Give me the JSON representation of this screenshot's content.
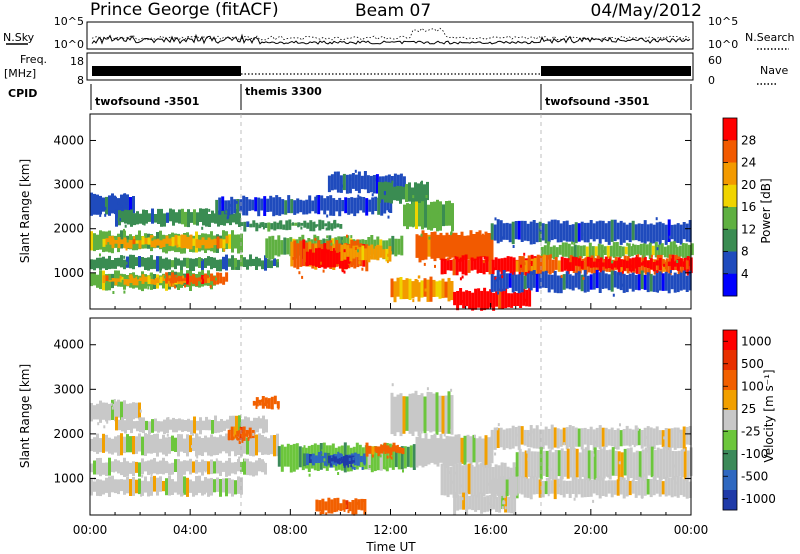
{
  "header": {
    "station": "Prince George (fitACF)",
    "beam": "Beam 07",
    "date": "04/May/2012"
  },
  "colors": {
    "power": [
      "#0000ff",
      "#1f4bbd",
      "#3a8c52",
      "#5fb041",
      "#f0d400",
      "#f39a00",
      "#f25a00",
      "#ff0000"
    ],
    "velocity": [
      "#1f3aa8",
      "#2f68c0",
      "#3c8a5a",
      "#6cc63c",
      "#c8c8c8",
      "#f2a000",
      "#f26000",
      "#e83000",
      "#ff0000"
    ],
    "grey": "#c8c8c8"
  },
  "top_panel": {
    "nsky_label": "N.Sky",
    "nsearch_label": "N.Search",
    "left_ticks": [
      "10^5",
      "10^0"
    ],
    "right_ticks": [
      "10^5",
      "10^0"
    ]
  },
  "freq_panel": {
    "label": "Freq.",
    "unit": "[MHz]",
    "left_ticks": [
      "18",
      "8"
    ],
    "right_ticks": [
      "60",
      "0"
    ],
    "nave_label": "Nave"
  },
  "cpid": {
    "label": "CPID",
    "segments": [
      "twofsound -3501",
      "themis 3300",
      "twofsound -3501"
    ]
  },
  "chart_data": [
    {
      "type": "heatmap",
      "name": "power",
      "ylabel": "Slant Range [km]",
      "ylim": [
        180,
        4600
      ],
      "yticks": [
        "1000",
        "2000",
        "3000",
        "4000"
      ],
      "colorbar": {
        "label": "Power [dB]",
        "ticks": [
          "4",
          "8",
          "12",
          "16",
          "20",
          "24",
          "28"
        ]
      },
      "bands": [
        {
          "x0": 0.0,
          "x1": 1.7,
          "y0": 2350,
          "y1": 2750,
          "c": 1
        },
        {
          "x0": 1.0,
          "x1": 6.0,
          "y0": 2100,
          "y1": 2400,
          "c": 2
        },
        {
          "x0": 0.0,
          "x1": 6.0,
          "y0": 1500,
          "y1": 1900,
          "c": 3
        },
        {
          "x0": 0.5,
          "x1": 5.5,
          "y0": 1600,
          "y1": 1800,
          "c": 5
        },
        {
          "x0": 0.0,
          "x1": 7.5,
          "y0": 1100,
          "y1": 1350,
          "c": 2
        },
        {
          "x0": 0.0,
          "x1": 5.0,
          "y0": 650,
          "y1": 1000,
          "c": 3
        },
        {
          "x0": 0.5,
          "x1": 4.0,
          "y0": 750,
          "y1": 900,
          "c": 5
        },
        {
          "x0": 3.0,
          "x1": 5.5,
          "y0": 750,
          "y1": 950,
          "c": 6
        },
        {
          "x0": 5.0,
          "x1": 12.0,
          "y0": 2350,
          "y1": 2700,
          "c": 1
        },
        {
          "x0": 6.0,
          "x1": 10.0,
          "y0": 2000,
          "y1": 2150,
          "c": 2
        },
        {
          "x0": 7.0,
          "x1": 12.5,
          "y0": 1350,
          "y1": 1800,
          "c": 3
        },
        {
          "x0": 8.0,
          "x1": 11.0,
          "y0": 1100,
          "y1": 1700,
          "c": 6
        },
        {
          "x0": 8.5,
          "x1": 10.5,
          "y0": 1150,
          "y1": 1500,
          "c": 7
        },
        {
          "x0": 10.0,
          "x1": 12.0,
          "y0": 1300,
          "y1": 1600,
          "c": 5
        },
        {
          "x0": 9.5,
          "x1": 12.5,
          "y0": 2850,
          "y1": 3250,
          "c": 1
        },
        {
          "x0": 11.5,
          "x1": 13.5,
          "y0": 2600,
          "y1": 3000,
          "c": 2
        },
        {
          "x0": 12.5,
          "x1": 14.5,
          "y0": 2000,
          "y1": 2600,
          "c": 3
        },
        {
          "x0": 13.0,
          "x1": 16.0,
          "y0": 1300,
          "y1": 1900,
          "c": 6
        },
        {
          "x0": 14.0,
          "x1": 18.0,
          "y0": 1000,
          "y1": 1350,
          "c": 7
        },
        {
          "x0": 12.0,
          "x1": 14.5,
          "y0": 400,
          "y1": 850,
          "c": 5
        },
        {
          "x0": 14.5,
          "x1": 17.5,
          "y0": 200,
          "y1": 600,
          "c": 7
        },
        {
          "x0": 16.0,
          "x1": 24.0,
          "y0": 1700,
          "y1": 2150,
          "c": 1
        },
        {
          "x0": 18.0,
          "x1": 24.0,
          "y0": 1350,
          "y1": 1650,
          "c": 3
        },
        {
          "x0": 17.0,
          "x1": 24.0,
          "y0": 1000,
          "y1": 1350,
          "c": 6
        },
        {
          "x0": 19.0,
          "x1": 24.0,
          "y0": 1100,
          "y1": 1300,
          "c": 7
        },
        {
          "x0": 16.0,
          "x1": 24.0,
          "y0": 600,
          "y1": 1000,
          "c": 1
        }
      ]
    },
    {
      "type": "heatmap",
      "name": "velocity",
      "ylabel": "Slant Range [km]",
      "xlabel": "Time UT",
      "ylim": [
        180,
        4600
      ],
      "yticks": [
        "1000",
        "2000",
        "3000",
        "4000"
      ],
      "xticks": [
        "00:00",
        "04:00",
        "08:00",
        "12:00",
        "16:00",
        "20:00",
        "00:00"
      ],
      "colorbar": {
        "label": "Velocity [m s⁻¹]",
        "ticks": [
          "1000",
          "500",
          "100",
          "25",
          "-25",
          "-100",
          "-500",
          "-1000"
        ]
      },
      "bands": [
        {
          "x0": 0.0,
          "x1": 2.0,
          "y0": 2300,
          "y1": 2700,
          "c": 4
        },
        {
          "x0": 1.0,
          "x1": 7.0,
          "y0": 2050,
          "y1": 2350,
          "c": 4
        },
        {
          "x0": 0.0,
          "x1": 7.5,
          "y0": 1550,
          "y1": 1950,
          "c": 4
        },
        {
          "x0": 0.0,
          "x1": 7.0,
          "y0": 1100,
          "y1": 1400,
          "c": 4
        },
        {
          "x0": 0.0,
          "x1": 6.0,
          "y0": 650,
          "y1": 1000,
          "c": 4
        },
        {
          "x0": 6.5,
          "x1": 7.5,
          "y0": 2600,
          "y1": 2800,
          "c": 6
        },
        {
          "x0": 5.5,
          "x1": 6.5,
          "y0": 1900,
          "y1": 2100,
          "c": 6
        },
        {
          "x0": 7.5,
          "x1": 13.0,
          "y0": 1200,
          "y1": 1750,
          "c": 3
        },
        {
          "x0": 8.5,
          "x1": 11.0,
          "y0": 1300,
          "y1": 1550,
          "c": 1
        },
        {
          "x0": 9.5,
          "x1": 10.5,
          "y0": 1350,
          "y1": 1500,
          "c": 0
        },
        {
          "x0": 11.0,
          "x1": 12.5,
          "y0": 1550,
          "y1": 1750,
          "c": 6
        },
        {
          "x0": 12.0,
          "x1": 14.5,
          "y0": 2000,
          "y1": 2900,
          "c": 4
        },
        {
          "x0": 13.0,
          "x1": 16.0,
          "y0": 1300,
          "y1": 1950,
          "c": 4
        },
        {
          "x0": 14.0,
          "x1": 17.0,
          "y0": 600,
          "y1": 1300,
          "c": 4
        },
        {
          "x0": 14.5,
          "x1": 17.0,
          "y0": 250,
          "y1": 650,
          "c": 4
        },
        {
          "x0": 16.0,
          "x1": 24.0,
          "y0": 1700,
          "y1": 2150,
          "c": 4
        },
        {
          "x0": 17.0,
          "x1": 24.0,
          "y0": 1000,
          "y1": 1650,
          "c": 4
        },
        {
          "x0": 16.0,
          "x1": 24.0,
          "y0": 600,
          "y1": 1000,
          "c": 4
        },
        {
          "x0": 9.0,
          "x1": 11.0,
          "y0": 250,
          "y1": 500,
          "c": 6
        }
      ]
    }
  ]
}
